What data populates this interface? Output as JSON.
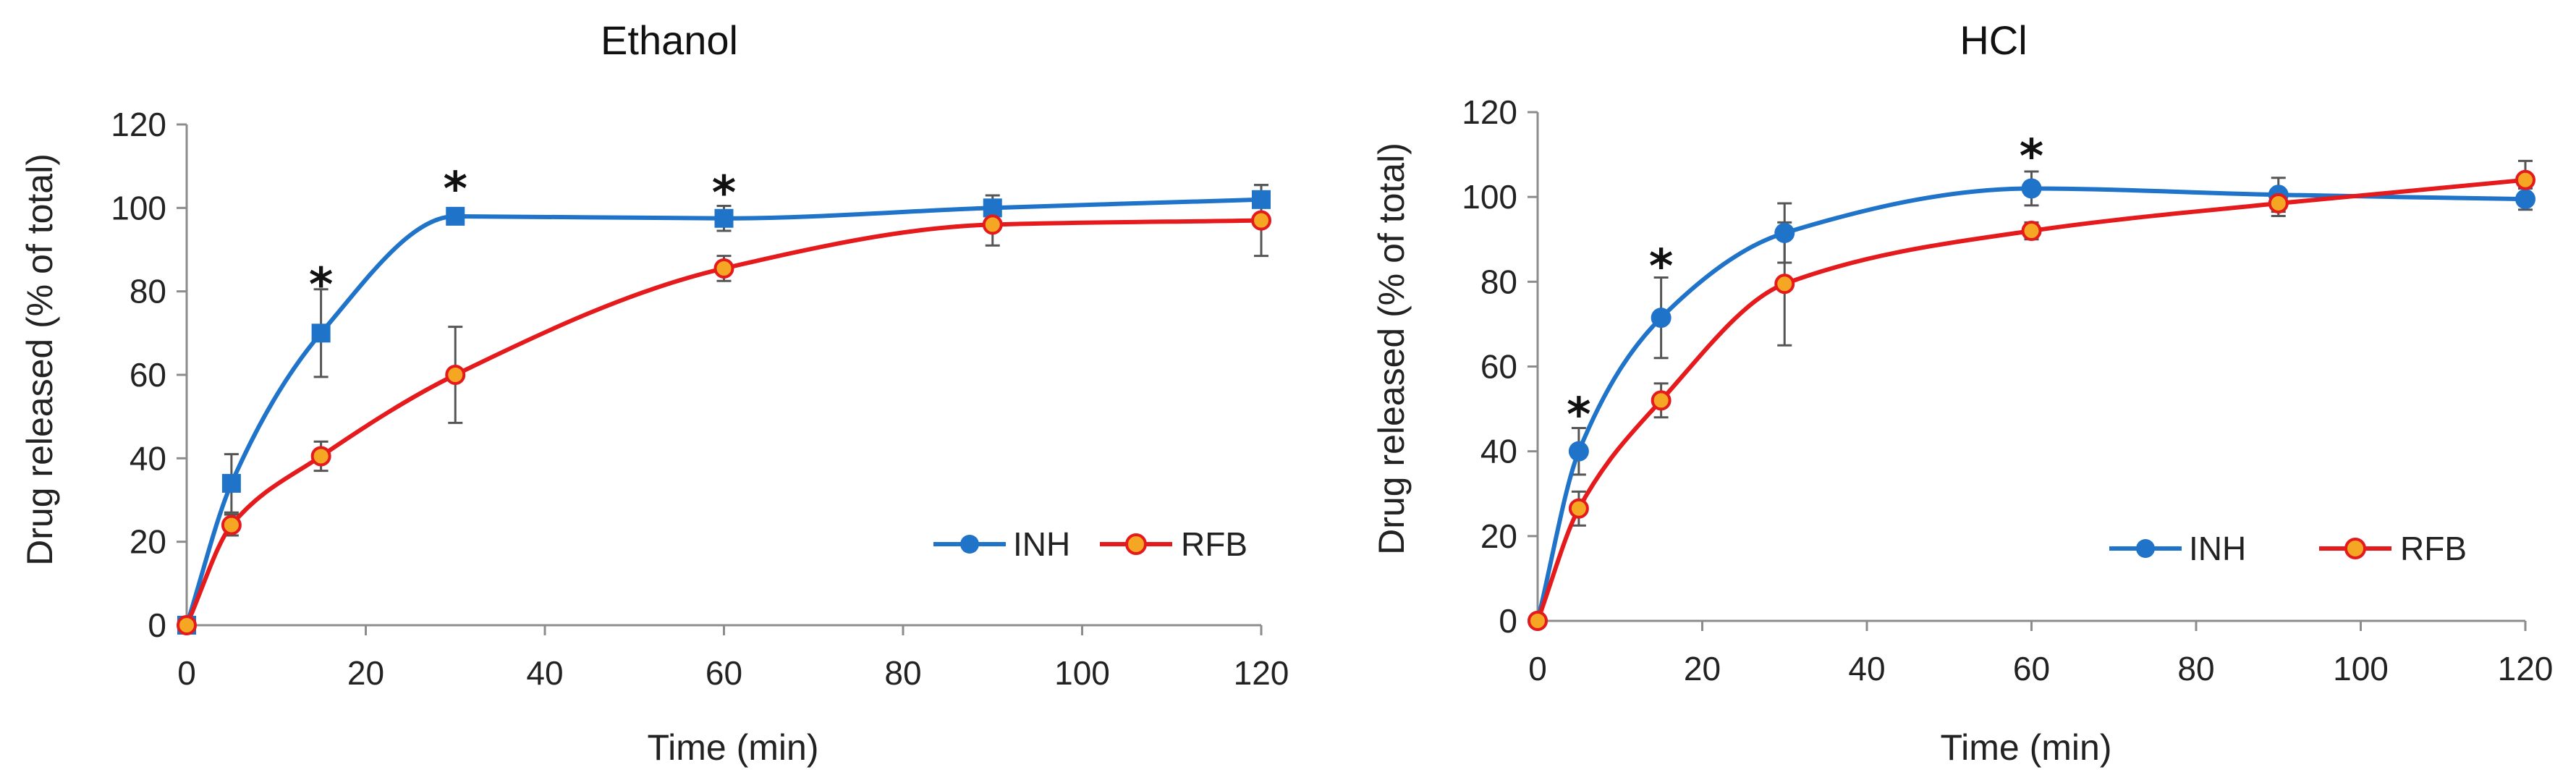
{
  "chart_data": [
    {
      "id": "ethanol",
      "type": "line",
      "title": "Ethanol",
      "xlabel": "Time (min)",
      "ylabel": "Drug released (% of total)",
      "xlim": [
        0,
        120
      ],
      "ylim": [
        0,
        120
      ],
      "xticks": [
        0,
        20,
        40,
        60,
        80,
        100,
        120
      ],
      "yticks": [
        0,
        20,
        40,
        60,
        80,
        100,
        120
      ],
      "grid": false,
      "legend_position": "bottom-right",
      "x": [
        0,
        5,
        15,
        30,
        60,
        90,
        120
      ],
      "series": [
        {
          "name": "INH",
          "color": "#1F73C8",
          "marker": "square",
          "values": [
            0,
            34,
            70,
            98,
            97.5,
            100,
            102
          ],
          "errors": [
            0,
            7,
            10.5,
            1.5,
            3,
            3,
            3.5
          ]
        },
        {
          "name": "RFB",
          "color": "#E41A1C",
          "marker": "circle",
          "marker_fill": "#F5A623",
          "values": [
            0,
            24,
            40.5,
            60,
            85.5,
            96,
            97
          ],
          "errors": [
            0,
            2.5,
            3.5,
            11.5,
            3,
            5,
            8.5
          ]
        }
      ],
      "annotations": [
        {
          "x": 15,
          "y": 84,
          "text": "*"
        },
        {
          "x": 30,
          "y": 107,
          "text": "*"
        },
        {
          "x": 60,
          "y": 106,
          "text": "*"
        }
      ]
    },
    {
      "id": "hcl",
      "type": "line",
      "title": "HCl",
      "xlabel": "Time (min)",
      "ylabel": "Drug released (% of total)",
      "xlim": [
        0,
        120
      ],
      "ylim": [
        0,
        120
      ],
      "xticks": [
        0,
        20,
        40,
        60,
        80,
        100,
        120
      ],
      "yticks": [
        0,
        20,
        40,
        60,
        80,
        100,
        120
      ],
      "grid": false,
      "legend_position": "bottom-right",
      "x": [
        0,
        5,
        15,
        30,
        60,
        90,
        120
      ],
      "series": [
        {
          "name": "INH",
          "color": "#1F73C8",
          "marker": "circle",
          "values": [
            0,
            40,
            71.5,
            91.5,
            102,
            100.5,
            99.5
          ],
          "errors": [
            0,
            5.5,
            9.5,
            7,
            4,
            4,
            2.5
          ]
        },
        {
          "name": "RFB",
          "color": "#E41A1C",
          "marker": "circle",
          "marker_fill": "#F5A623",
          "values": [
            0,
            26.5,
            52,
            79.5,
            92,
            98.5,
            104
          ],
          "errors": [
            0,
            4,
            4,
            14.5,
            2,
            3,
            4.5
          ]
        }
      ],
      "annotations": [
        {
          "x": 5,
          "y": 51,
          "text": "*"
        },
        {
          "x": 15,
          "y": 86,
          "text": "*"
        },
        {
          "x": 60,
          "y": 112,
          "text": "*"
        }
      ]
    }
  ]
}
